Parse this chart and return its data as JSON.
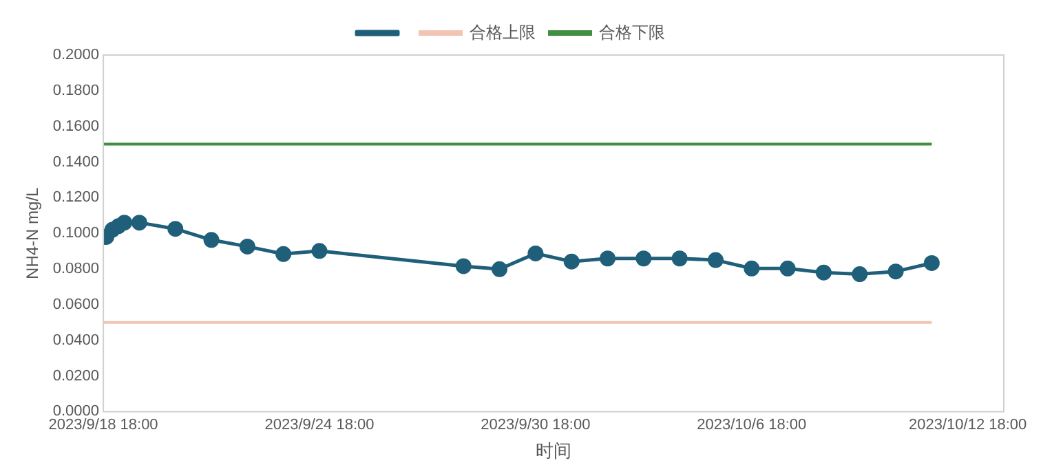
{
  "chart_data": {
    "type": "line",
    "xlabel": "时间",
    "ylabel": "NH4-N mg/L",
    "x": [
      "2023-09-18T18:00",
      "2023-09-18T20:00",
      "2023-09-19T00:00",
      "2023-09-19T04:00",
      "2023-09-19T08:00",
      "2023-09-19T18:00",
      "2023-09-20T18:00",
      "2023-09-21T18:00",
      "2023-09-22T18:00",
      "2023-09-23T18:00",
      "2023-09-24T18:00",
      "2023-09-28T18:00",
      "2023-09-29T18:00",
      "2023-09-30T18:00",
      "2023-10-01T18:00",
      "2023-10-02T18:00",
      "2023-10-03T18:00",
      "2023-10-04T18:00",
      "2023-10-05T18:00",
      "2023-10-06T18:00",
      "2023-10-07T18:00",
      "2023-10-08T18:00",
      "2023-10-09T18:00",
      "2023-10-10T18:00",
      "2023-10-11T18:00"
    ],
    "series": [
      {
        "color": "#1f5f7a",
        "values": [
          0.098,
          0.098,
          0.102,
          0.104,
          0.106,
          0.106,
          0.1025,
          0.0963,
          0.0926,
          0.0884,
          0.0901,
          0.0816,
          0.0799,
          0.0887,
          0.0842,
          0.0859,
          0.0859,
          0.0859,
          0.085,
          0.0803,
          0.0803,
          0.078,
          0.0771,
          0.0786,
          0.0833
        ]
      }
    ],
    "ref_lines": [
      {
        "axis": "y",
        "value": 0.05,
        "label": "合格上限",
        "color": "#f2c4b4"
      },
      {
        "axis": "y",
        "value": 0.15,
        "label": "合格下限",
        "color": "#3f8f3f"
      }
    ],
    "xlim": [
      "2023-09-18T18:00",
      "2023-10-13T18:00"
    ],
    "xticks": [
      {
        "value": "2023-09-18T18:00",
        "label": "2023/9/18 18:00"
      },
      {
        "value": "2023-09-24T18:00",
        "label": "2023/9/24 18:00"
      },
      {
        "value": "2023-09-30T18:00",
        "label": "2023/9/30 18:00"
      },
      {
        "value": "2023-10-06T18:00",
        "label": "2023/10/6 18:00"
      },
      {
        "value": "2023-10-12T18:00",
        "label": "2023/10/12 18:00"
      }
    ],
    "ylim": [
      0,
      0.2
    ],
    "yticks": [
      {
        "value": 0,
        "label": "0.0000"
      },
      {
        "value": 0.02,
        "label": "0.0200"
      },
      {
        "value": 0.04,
        "label": "0.0400"
      },
      {
        "value": 0.06,
        "label": "0.0600"
      },
      {
        "value": 0.08,
        "label": "0.0800"
      },
      {
        "value": 0.1,
        "label": "0.1000"
      },
      {
        "value": 0.12,
        "label": "0.1200"
      },
      {
        "value": 0.14,
        "label": "0.1400"
      },
      {
        "value": 0.16,
        "label": "0.1600"
      },
      {
        "value": 0.18,
        "label": "0.1800"
      },
      {
        "value": 0.2,
        "label": "0.2000"
      }
    ],
    "grid": false,
    "legend": "top",
    "marker": "circle",
    "line_style": "solid"
  }
}
